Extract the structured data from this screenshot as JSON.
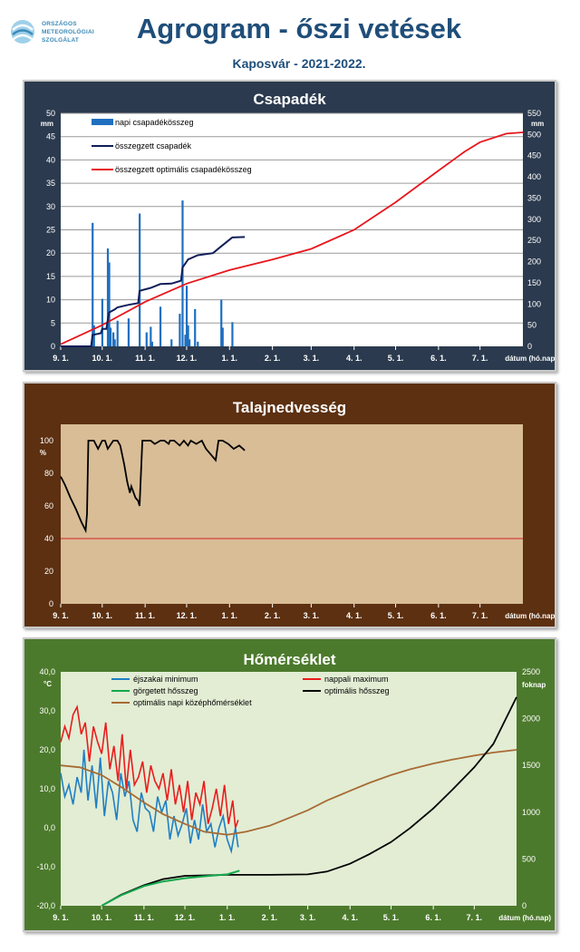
{
  "header": {
    "title": "Agrogram - őszi vetések",
    "subtitle": "Kaposvár - 2021-2022.",
    "logo_lines": [
      "ORSZÁGOS",
      "METEOROLÓGIAI",
      "SZOLGÁLAT"
    ]
  },
  "colors": {
    "precip_bg": "#2b3a4e",
    "precip_plot": "#ffffff",
    "soil_bg": "#5c3011",
    "soil_plot": "#d8bd97",
    "temp_bg": "#4c7a2c",
    "temp_plot": "#e2edd4",
    "daily_bar": "#1f6fbf",
    "cum_precip": "#101e5a",
    "optimal_red": "#e8161c",
    "night_min": "#1f7fc4",
    "day_max": "#ea1c1c",
    "rolling_sum": "#13a84c",
    "optimal_sum": "#000000",
    "optimal_mean": "#a86b34",
    "soil_line": "#000000"
  },
  "x_axis": {
    "ticks": [
      "9. 1.",
      "10. 1.",
      "11. 1.",
      "12. 1.",
      "1. 1.",
      "2. 1.",
      "3. 1.",
      "4. 1.",
      "5. 1.",
      "6. 1.",
      "7. 1."
    ],
    "label": "dátum (hó.nap)"
  },
  "chart_data": [
    {
      "type": "bar",
      "title": "Csapadék",
      "ylabel_left": "mm",
      "ylabel_right": "mm",
      "ylim_left": [
        0,
        50
      ],
      "yticks_left": [
        0,
        5,
        10,
        15,
        20,
        25,
        30,
        35,
        40,
        45,
        50
      ],
      "ylim_right": [
        0,
        550
      ],
      "yticks_right": [
        0,
        50,
        100,
        150,
        200,
        250,
        300,
        350,
        400,
        450,
        500,
        550
      ],
      "grid": true,
      "legend_placement": "top-left",
      "series": [
        {
          "name": "napi csapadékösszeg",
          "style": "bar",
          "axis": "left",
          "x": [
            "2021-09-24",
            "2021-09-25",
            "2021-10-01",
            "2021-10-05",
            "2021-10-06",
            "2021-10-07",
            "2021-10-09",
            "2021-10-10",
            "2021-10-12",
            "2021-10-20",
            "2021-10-28",
            "2021-11-02",
            "2021-11-05",
            "2021-11-06",
            "2021-11-12",
            "2021-11-20",
            "2021-11-26",
            "2021-11-28",
            "2021-11-30",
            "2021-12-01",
            "2021-12-02",
            "2021-12-03",
            "2021-12-07",
            "2021-12-09",
            "2021-12-26",
            "2021-12-27",
            "2022-01-03"
          ],
          "y": [
            26.5,
            4.5,
            10.2,
            21.0,
            18.0,
            4.0,
            3.0,
            1.5,
            5.5,
            6.0,
            28.5,
            3.0,
            4.2,
            1.0,
            8.5,
            1.5,
            7.0,
            31.3,
            2.5,
            13.0,
            4.5,
            1.5,
            8.0,
            1.0,
            10.0,
            4.0,
            5.2
          ]
        },
        {
          "name": "összegzett csapadék",
          "style": "line",
          "axis": "right",
          "x": [
            "2021-09-01",
            "2021-09-23",
            "2021-09-24",
            "2021-09-30",
            "2021-10-01",
            "2021-10-04",
            "2021-10-05",
            "2021-10-06",
            "2021-10-10",
            "2021-10-12",
            "2021-10-20",
            "2021-10-27",
            "2021-10-28",
            "2021-11-05",
            "2021-11-12",
            "2021-11-20",
            "2021-11-27",
            "2021-11-28",
            "2021-12-01",
            "2021-12-02",
            "2021-12-09",
            "2021-12-20",
            "2021-12-26",
            "2022-01-03",
            "2022-01-12"
          ],
          "y": [
            0,
            0,
            27,
            31,
            41,
            41,
            62,
            80,
            87,
            92,
            98,
            102,
            131,
            138,
            147,
            148,
            155,
            186,
            200,
            205,
            215,
            220,
            236,
            257,
            258
          ]
        },
        {
          "name": "összegzett optimális  csapadékösszeg",
          "style": "line",
          "axis": "right",
          "x": [
            "2021-09-01",
            "2021-10-01",
            "2021-11-01",
            "2021-12-01",
            "2022-01-01",
            "2022-02-01",
            "2022-03-01",
            "2022-04-01",
            "2022-05-01",
            "2022-06-01",
            "2022-06-20",
            "2022-07-01",
            "2022-07-20",
            "2022-08-01"
          ],
          "y": [
            5,
            50,
            105,
            148,
            180,
            205,
            230,
            275,
            340,
            415,
            460,
            482,
            502,
            505
          ]
        }
      ]
    },
    {
      "type": "line",
      "title": "Talajnedvesség",
      "ylabel": "%",
      "ylim": [
        0,
        110
      ],
      "yticks": [
        0,
        20,
        40,
        60,
        80,
        100
      ],
      "threshold": 40,
      "series": [
        {
          "style": "line",
          "x": [
            "2021-09-01",
            "2021-09-04",
            "2021-09-08",
            "2021-09-12",
            "2021-09-16",
            "2021-09-19",
            "2021-09-20",
            "2021-09-21",
            "2021-09-25",
            "2021-09-28",
            "2021-10-01",
            "2021-10-03",
            "2021-10-05",
            "2021-10-09",
            "2021-10-12",
            "2021-10-14",
            "2021-10-17",
            "2021-10-19",
            "2021-10-21",
            "2021-10-22",
            "2021-10-25",
            "2021-10-27",
            "2021-10-28",
            "2021-10-30",
            "2021-11-05",
            "2021-11-08",
            "2021-11-12",
            "2021-11-15",
            "2021-11-18",
            "2021-11-19",
            "2021-11-22",
            "2021-11-26",
            "2021-11-29",
            "2021-12-02",
            "2021-12-04",
            "2021-12-08",
            "2021-12-12",
            "2021-12-15",
            "2021-12-18",
            "2021-12-22",
            "2021-12-24",
            "2021-12-27",
            "2021-12-31",
            "2022-01-04",
            "2022-01-08",
            "2022-01-12"
          ],
          "y": [
            78,
            73,
            65,
            58,
            50,
            45,
            55,
            100,
            100,
            95,
            100,
            100,
            95,
            100,
            100,
            97,
            85,
            75,
            68,
            72,
            65,
            63,
            60,
            100,
            100,
            98,
            100,
            100,
            98,
            100,
            100,
            97,
            100,
            97,
            100,
            98,
            100,
            95,
            92,
            88,
            100,
            100,
            98,
            95,
            97,
            94
          ]
        }
      ]
    },
    {
      "type": "line",
      "title": "Hőmérséklet",
      "ylabel_left": "°C",
      "ylabel_right": "foknap",
      "ylim_left": [
        -20,
        40
      ],
      "yticks_left": [
        "-20,0",
        "-10,0",
        "0,0",
        "10,0",
        "20,0",
        "30,0",
        "40,0"
      ],
      "ylim_right": [
        0,
        2500
      ],
      "yticks_right": [
        0,
        500,
        1000,
        1500,
        2000,
        2500
      ],
      "legend_placement": "top",
      "series": [
        {
          "name": "éjszakai minimum",
          "axis": "left",
          "x": [
            "2021-09-01",
            "2021-09-04",
            "2021-09-07",
            "2021-09-10",
            "2021-09-13",
            "2021-09-16",
            "2021-09-18",
            "2021-09-21",
            "2021-09-24",
            "2021-09-27",
            "2021-09-30",
            "2021-10-03",
            "2021-10-06",
            "2021-10-09",
            "2021-10-12",
            "2021-10-15",
            "2021-10-18",
            "2021-10-21",
            "2021-10-24",
            "2021-10-27",
            "2021-10-30",
            "2021-11-02",
            "2021-11-05",
            "2021-11-08",
            "2021-11-11",
            "2021-11-14",
            "2021-11-17",
            "2021-11-20",
            "2021-11-23",
            "2021-11-26",
            "2021-11-29",
            "2021-12-02",
            "2021-12-05",
            "2021-12-08",
            "2021-12-11",
            "2021-12-14",
            "2021-12-17",
            "2021-12-20",
            "2021-12-23",
            "2021-12-26",
            "2021-12-29",
            "2022-01-01",
            "2022-01-04",
            "2022-01-07",
            "2022-01-09"
          ],
          "y": [
            14,
            8,
            11,
            6,
            13,
            9,
            20,
            7,
            16,
            5,
            18,
            3,
            12,
            9,
            2,
            14,
            8,
            12,
            2,
            -1,
            9,
            5,
            4,
            -1,
            8,
            4,
            7,
            -3,
            3,
            -2,
            1,
            5,
            -4,
            2,
            -3,
            6,
            -1,
            1,
            -5,
            0,
            3,
            -3,
            -6,
            0,
            -5
          ]
        },
        {
          "name": "nappali maximum",
          "axis": "left",
          "x": [
            "2021-09-01",
            "2021-09-04",
            "2021-09-07",
            "2021-09-10",
            "2021-09-13",
            "2021-09-16",
            "2021-09-19",
            "2021-09-22",
            "2021-09-25",
            "2021-09-28",
            "2021-10-01",
            "2021-10-04",
            "2021-10-07",
            "2021-10-10",
            "2021-10-13",
            "2021-10-16",
            "2021-10-19",
            "2021-10-22",
            "2021-10-25",
            "2021-10-28",
            "2021-10-31",
            "2021-11-03",
            "2021-11-06",
            "2021-11-09",
            "2021-11-12",
            "2021-11-15",
            "2021-11-18",
            "2021-11-21",
            "2021-11-24",
            "2021-11-27",
            "2021-11-30",
            "2021-12-03",
            "2021-12-06",
            "2021-12-09",
            "2021-12-12",
            "2021-12-15",
            "2021-12-18",
            "2021-12-21",
            "2021-12-24",
            "2021-12-27",
            "2021-12-30",
            "2022-01-02",
            "2022-01-05",
            "2022-01-07",
            "2022-01-09"
          ],
          "y": [
            22,
            26,
            23,
            29,
            31,
            24,
            27,
            17,
            26,
            22,
            19,
            27,
            15,
            21,
            12,
            24,
            10,
            20,
            11,
            13,
            17,
            9,
            16,
            12,
            10,
            14,
            7,
            15,
            6,
            11,
            4,
            12,
            2,
            9,
            6,
            12,
            1,
            5,
            10,
            3,
            11,
            1,
            7,
            0,
            2
          ]
        },
        {
          "name": "görgetett hősszeg",
          "axis": "right",
          "x": [
            "2021-10-01",
            "2021-10-15",
            "2021-11-01",
            "2021-11-15",
            "2021-12-01",
            "2021-12-15",
            "2022-01-01",
            "2022-01-10"
          ],
          "y": [
            0,
            110,
            210,
            260,
            295,
            315,
            335,
            375
          ]
        },
        {
          "name": "optimális hősszeg",
          "axis": "right",
          "x": [
            "2021-10-01",
            "2021-10-15",
            "2021-11-01",
            "2021-11-15",
            "2021-12-01",
            "2022-01-01",
            "2022-02-01",
            "2022-03-01",
            "2022-03-15",
            "2022-04-01",
            "2022-04-15",
            "2022-05-01",
            "2022-05-15",
            "2022-06-01",
            "2022-06-15",
            "2022-07-01",
            "2022-07-15",
            "2022-08-01"
          ],
          "y": [
            0,
            115,
            220,
            285,
            320,
            330,
            330,
            335,
            365,
            450,
            550,
            680,
            830,
            1040,
            1240,
            1480,
            1730,
            2230
          ]
        },
        {
          "name": "optimális napi középhőmérséklet",
          "axis": "left",
          "x": [
            "2021-09-01",
            "2021-09-15",
            "2021-10-01",
            "2021-10-15",
            "2021-11-01",
            "2021-11-15",
            "2021-12-01",
            "2021-12-15",
            "2022-01-01",
            "2022-01-15",
            "2022-02-01",
            "2022-02-15",
            "2022-03-01",
            "2022-03-15",
            "2022-04-01",
            "2022-04-15",
            "2022-05-01",
            "2022-05-15",
            "2022-06-01",
            "2022-06-15",
            "2022-07-01",
            "2022-07-15",
            "2022-08-01"
          ],
          "y": [
            16,
            15.5,
            13.5,
            10.5,
            6.5,
            3.5,
            1,
            -1,
            -1.8,
            -1,
            0.5,
            2.5,
            4.5,
            7,
            9.5,
            11.5,
            13.5,
            15,
            16.5,
            17.5,
            18.5,
            19.3,
            20
          ]
        }
      ]
    }
  ]
}
